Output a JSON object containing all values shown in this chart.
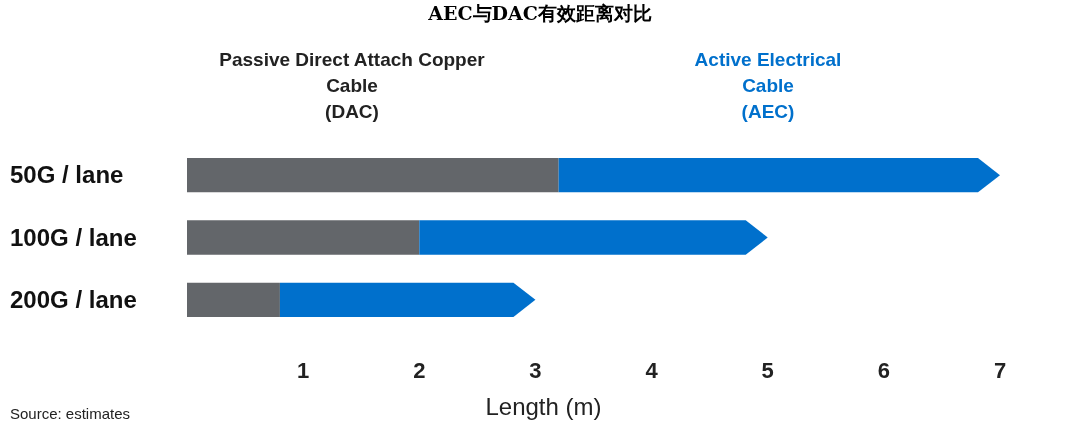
{
  "chart_data": {
    "type": "bar",
    "orientation": "horizontal",
    "stacked": true,
    "title": "AEC与DAC有效距离对比",
    "xlabel": "Length (m)",
    "categories": [
      "50G / lane",
      "100G / lane",
      "200G / lane"
    ],
    "series": [
      {
        "name": "Passive Direct Attach Copper\nCable\n(DAC)",
        "color": "#63666a",
        "values": [
          3.2,
          2,
          0.8
        ]
      },
      {
        "name": "Active Electrical\nCable\n(AEC)",
        "color": "#0070cc",
        "values": [
          3.8,
          3,
          2.2
        ]
      }
    ],
    "xlim": [
      0,
      7
    ],
    "xticks": [
      1,
      2,
      3,
      4,
      5,
      6,
      7
    ],
    "legend": "top",
    "grid": false,
    "annotations": [
      "Source: estimates"
    ]
  }
}
